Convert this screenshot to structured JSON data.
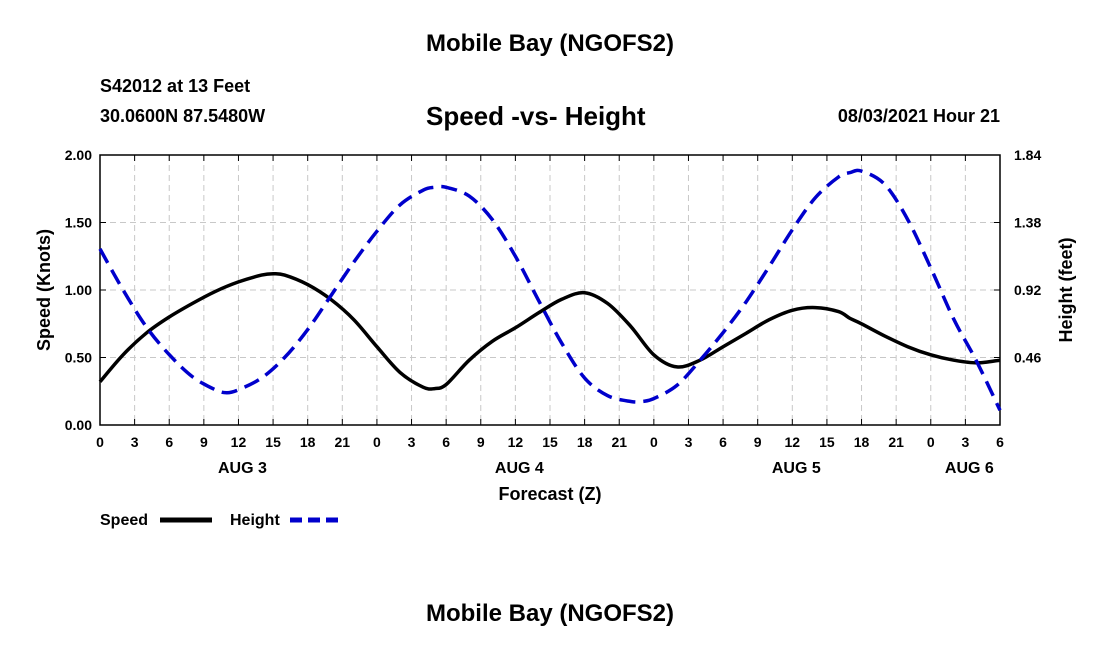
{
  "header": {
    "title": "Mobile Bay (NGOFS2)",
    "station": "S42012 at 13 Feet",
    "coordinates": "30.0600N  87.5480W",
    "subtitle": "Speed -vs- Height",
    "forecast_time": "08/03/2021 Hour 21"
  },
  "footer": {
    "title": "Mobile Bay (NGOFS2)"
  },
  "chart_data": {
    "type": "line",
    "xlabel": "Forecast (Z)",
    "ylabel_left": "Speed (Knots)",
    "ylabel_right": "Height (feet)",
    "x_range_hours": [
      0,
      78
    ],
    "x_tick_labels": [
      "0",
      "3",
      "6",
      "9",
      "12",
      "15",
      "18",
      "21",
      "0",
      "3",
      "6",
      "9",
      "12",
      "15",
      "18",
      "21",
      "0",
      "3",
      "6",
      "9",
      "12",
      "15",
      "18",
      "21",
      "0",
      "3",
      "6"
    ],
    "day_labels": [
      {
        "label": "AUG 3",
        "hour": 12
      },
      {
        "label": "AUG 4",
        "hour": 36
      },
      {
        "label": "AUG 5",
        "hour": 60
      },
      {
        "label": "AUG 6",
        "hour": 75
      }
    ],
    "y_left": {
      "range": [
        0,
        2
      ],
      "ticks": [
        "0.00",
        "0.50",
        "1.00",
        "1.50",
        "2.00"
      ]
    },
    "y_right": {
      "range": [
        0,
        1.84
      ],
      "ticks": [
        "0.46",
        "0.92",
        "1.38",
        "1.84"
      ]
    },
    "grid": true,
    "legend_position": "bottom-left",
    "colors": {
      "speed": "#000000",
      "height": "#0000cc"
    },
    "series": [
      {
        "name": "Speed",
        "axis": "left",
        "style": "solid",
        "x": [
          0,
          2,
          4,
          6,
          8,
          10,
          12,
          14,
          15,
          16,
          18,
          20,
          22,
          24,
          26,
          28,
          29,
          30,
          32,
          34,
          36,
          38,
          40,
          42,
          44,
          46,
          48,
          50,
          52,
          54,
          56,
          58,
          60,
          62,
          64,
          65,
          66,
          68,
          70,
          72,
          74,
          76,
          78
        ],
        "y": [
          0.32,
          0.52,
          0.68,
          0.8,
          0.9,
          0.99,
          1.06,
          1.11,
          1.12,
          1.11,
          1.04,
          0.93,
          0.78,
          0.58,
          0.39,
          0.28,
          0.27,
          0.3,
          0.48,
          0.62,
          0.72,
          0.83,
          0.93,
          0.98,
          0.9,
          0.73,
          0.52,
          0.43,
          0.48,
          0.58,
          0.68,
          0.78,
          0.85,
          0.87,
          0.84,
          0.79,
          0.75,
          0.66,
          0.58,
          0.52,
          0.48,
          0.46,
          0.48
        ]
      },
      {
        "name": "Height",
        "axis": "right",
        "style": "dashed",
        "x": [
          0,
          2,
          4,
          6,
          8,
          10,
          11,
          12,
          14,
          16,
          18,
          20,
          22,
          24,
          26,
          28,
          29,
          30,
          32,
          34,
          36,
          38,
          40,
          42,
          44,
          46,
          47,
          48,
          50,
          52,
          54,
          56,
          58,
          60,
          62,
          64,
          65,
          66,
          68,
          70,
          72,
          74,
          76,
          78
        ],
        "y": [
          1.2,
          0.92,
          0.67,
          0.48,
          0.33,
          0.24,
          0.22,
          0.24,
          0.32,
          0.46,
          0.65,
          0.88,
          1.11,
          1.32,
          1.5,
          1.6,
          1.62,
          1.62,
          1.56,
          1.4,
          1.15,
          0.85,
          0.56,
          0.32,
          0.2,
          0.16,
          0.16,
          0.18,
          0.27,
          0.44,
          0.63,
          0.84,
          1.08,
          1.33,
          1.55,
          1.69,
          1.72,
          1.73,
          1.64,
          1.4,
          1.07,
          0.72,
          0.43,
          0.1
        ]
      }
    ]
  }
}
